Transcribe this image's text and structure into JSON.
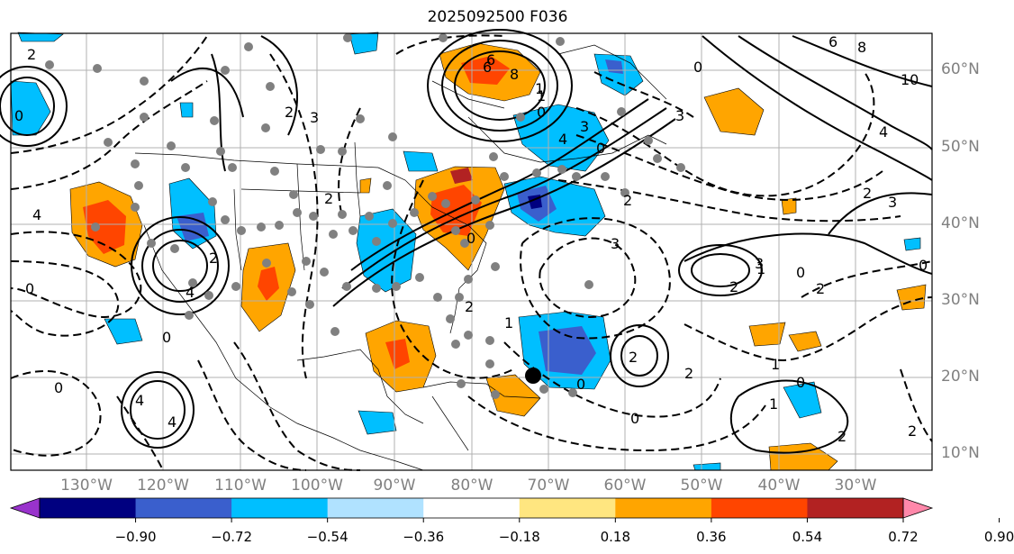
{
  "title": "2025092500 F036",
  "lat_labels": [
    "60°N",
    "50°N",
    "40°N",
    "30°N",
    "20°N",
    "10°N"
  ],
  "lon_labels": [
    "130°W",
    "120°W",
    "110°W",
    "100°W",
    "90°W",
    "80°W",
    "70°W",
    "60°W",
    "50°W",
    "40°W",
    "30°W"
  ],
  "colorbar": {
    "ticks": [
      "−0.90",
      "−0.72",
      "−0.54",
      "−0.36",
      "−0.18",
      "0.18",
      "0.36",
      "0.54",
      "0.72",
      "0.90"
    ],
    "colors": [
      "#9933cc",
      "#000080",
      "#3a5fcd",
      "#00bfff",
      "#b0e2ff",
      "#ffffff",
      "#ffe680",
      "#ffa500",
      "#ff4500",
      "#b22222",
      "#ff88aa"
    ],
    "extend": "both"
  },
  "contour_labels": [
    "2",
    "0",
    "4",
    "0",
    "3",
    "2",
    "1",
    "8",
    "6",
    "1",
    "0",
    "3",
    "2",
    "4",
    "2",
    "0",
    "4",
    "2",
    "0",
    "3",
    "0",
    "3",
    "2",
    "0",
    "2",
    "1",
    "0",
    "4",
    "2",
    "10",
    "8",
    "6",
    "4",
    "3",
    "2",
    "0",
    "1",
    "2",
    "0",
    "1",
    "0",
    "4",
    "3",
    "2",
    "1",
    "0",
    "2",
    "6",
    "2",
    "0"
  ],
  "legend_colors": {
    "contour": "#000000",
    "dots": "#808080",
    "frame": "#000000",
    "grid": "#b0b0b0",
    "label": "#808080"
  }
}
